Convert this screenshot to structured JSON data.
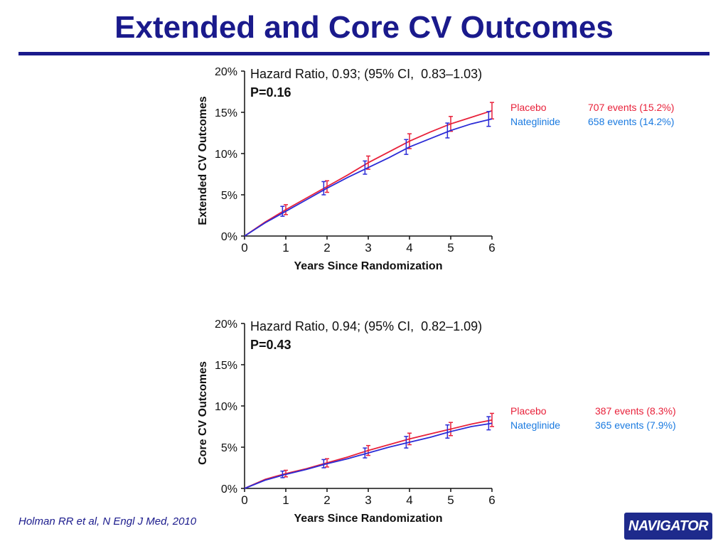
{
  "page": {
    "title": "Extended and Core CV Outcomes",
    "citation": "Holman RR et al, N Engl J Med, 2010",
    "logo_text": "NAVIGATOR"
  },
  "colors": {
    "placebo": "#e8213a",
    "nateglinide": "#2b2bd6",
    "legend_blue": "#1a7ae0",
    "title": "#1a1a8c"
  },
  "chart_data": [
    {
      "type": "line",
      "ylabel": "Extended CV Outcomes",
      "xlabel": "Years Since Randomization",
      "xlim": [
        0,
        6
      ],
      "ylim": [
        0,
        20
      ],
      "x_ticks": [
        0,
        1,
        2,
        3,
        4,
        5,
        6
      ],
      "y_ticks": [
        0,
        5,
        10,
        15,
        20
      ],
      "y_tick_labels": [
        "0%",
        "5%",
        "10%",
        "15%",
        "20%"
      ],
      "annotation_line1": "Hazard Ratio, 0.93; (95% CI,  0.83–1.03)",
      "annotation_line2": "P=0.16",
      "x": [
        0,
        0.5,
        1,
        1.5,
        2,
        2.5,
        3,
        3.5,
        4,
        4.5,
        5,
        5.5,
        6
      ],
      "series": [
        {
          "name": "Placebo",
          "color_key": "placebo",
          "values": [
            0,
            1.7,
            3.2,
            4.6,
            6.0,
            7.4,
            8.9,
            10.2,
            11.5,
            12.6,
            13.6,
            14.4,
            15.2
          ],
          "ci_x": [
            1,
            2,
            3,
            4,
            5,
            6
          ],
          "ci_y": [
            3.2,
            6.0,
            8.9,
            11.5,
            13.6,
            15.2
          ],
          "ci_low": [
            2.6,
            5.3,
            8.1,
            10.6,
            12.7,
            14.2
          ],
          "ci_high": [
            3.8,
            6.7,
            9.7,
            12.4,
            14.5,
            16.2
          ],
          "legend_label": "Placebo",
          "legend_events": "707 events (15.2%)"
        },
        {
          "name": "Nateglinide",
          "color_key": "nateglinide",
          "values": [
            0,
            1.6,
            3.0,
            4.4,
            5.8,
            7.1,
            8.3,
            9.5,
            10.8,
            11.8,
            12.8,
            13.6,
            14.2
          ],
          "ci_x": [
            0.92,
            1.92,
            2.92,
            3.92,
            4.92,
            5.92
          ],
          "ci_y": [
            3.0,
            5.8,
            8.3,
            10.8,
            12.8,
            14.2
          ],
          "ci_low": [
            2.4,
            5.0,
            7.5,
            9.9,
            11.9,
            13.3
          ],
          "ci_high": [
            3.6,
            6.6,
            9.1,
            11.7,
            13.7,
            15.1
          ],
          "legend_label": "Nateglinide",
          "legend_events": "658 events (14.2%)"
        }
      ]
    },
    {
      "type": "line",
      "ylabel": "Core CV Outcomes",
      "xlabel": "Years Since Randomization",
      "xlim": [
        0,
        6
      ],
      "ylim": [
        0,
        20
      ],
      "x_ticks": [
        0,
        1,
        2,
        3,
        4,
        5,
        6
      ],
      "y_ticks": [
        0,
        5,
        10,
        15,
        20
      ],
      "y_tick_labels": [
        "0%",
        "5%",
        "10%",
        "15%",
        "20%"
      ],
      "annotation_line1": "Hazard Ratio, 0.94; (95% CI,  0.82–1.09)",
      "annotation_line2": "P=0.43",
      "x": [
        0,
        0.5,
        1,
        1.5,
        2,
        2.5,
        3,
        3.5,
        4,
        4.5,
        5,
        5.5,
        6
      ],
      "series": [
        {
          "name": "Placebo",
          "color_key": "placebo",
          "values": [
            0,
            1.1,
            1.8,
            2.4,
            3.1,
            3.8,
            4.6,
            5.3,
            6.0,
            6.6,
            7.2,
            7.8,
            8.3
          ],
          "ci_x": [
            1,
            2,
            3,
            4,
            5,
            6
          ],
          "ci_y": [
            1.8,
            3.1,
            4.6,
            6.0,
            7.2,
            8.3
          ],
          "ci_low": [
            1.4,
            2.6,
            4.0,
            5.3,
            6.4,
            7.5
          ],
          "ci_high": [
            2.2,
            3.6,
            5.2,
            6.7,
            8.0,
            9.1
          ]
        },
        {
          "name": "Nateglinide",
          "color_key": "nateglinide",
          "values": [
            0,
            1.0,
            1.7,
            2.3,
            3.0,
            3.6,
            4.3,
            5.0,
            5.6,
            6.2,
            6.9,
            7.5,
            7.9
          ],
          "ci_x": [
            0.92,
            1.92,
            2.92,
            3.92,
            4.92,
            5.92
          ],
          "ci_y": [
            1.7,
            3.0,
            4.3,
            5.6,
            6.9,
            7.9
          ],
          "ci_low": [
            1.3,
            2.5,
            3.7,
            4.9,
            6.1,
            7.1
          ],
          "ci_high": [
            2.1,
            3.5,
            4.9,
            6.3,
            7.7,
            8.7
          ]
        }
      ]
    }
  ],
  "legends": [
    {
      "rows": [
        {
          "label": "Placebo",
          "events": "707 events (15.2%)",
          "color_key": "placebo"
        },
        {
          "label": "Nateglinide",
          "events": "658 events (14.2%)",
          "color_key": "legend_blue"
        }
      ]
    },
    {
      "rows": [
        {
          "label": "Placebo",
          "events": "387 events (8.3%)",
          "color_key": "placebo"
        },
        {
          "label": "Nateglinide",
          "events": "365 events (7.9%)",
          "color_key": "legend_blue"
        }
      ]
    }
  ]
}
